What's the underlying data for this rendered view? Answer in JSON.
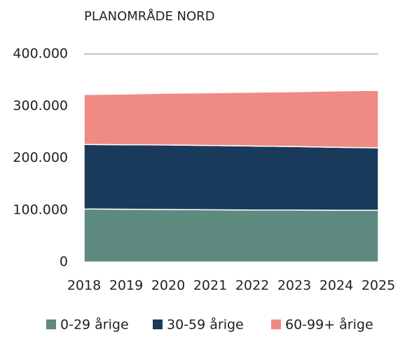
{
  "chart_data": {
    "type": "stacked-area",
    "title": "PLANOMRÅDE NORD",
    "categories": [
      "2018",
      "2019",
      "2020",
      "2021",
      "2022",
      "2023",
      "2024",
      "2025"
    ],
    "series": [
      {
        "name": "0-29 årige",
        "color": "#5f8a80",
        "values": [
          102000,
          101500,
          101000,
          100500,
          100000,
          100000,
          99500,
          99500
        ]
      },
      {
        "name": "30-59 årige",
        "color": "#1a3a5c",
        "values": [
          124000,
          124000,
          124000,
          123500,
          123000,
          122000,
          121000,
          120000
        ]
      },
      {
        "name": "60-99+ årige",
        "color": "#f08a84",
        "values": [
          96000,
          97500,
          99500,
          101500,
          103500,
          105500,
          108500,
          110500
        ]
      }
    ],
    "ylim": [
      0,
      400000
    ],
    "yticks": [
      0,
      {
        "value": 100000,
        "label": "100.000"
      },
      {
        "value": 200000,
        "label": "200.000"
      },
      {
        "value": 300000,
        "label": "300.000"
      },
      {
        "value": 400000,
        "label": "400.000"
      }
    ],
    "grid": true,
    "legend": "bottom"
  }
}
